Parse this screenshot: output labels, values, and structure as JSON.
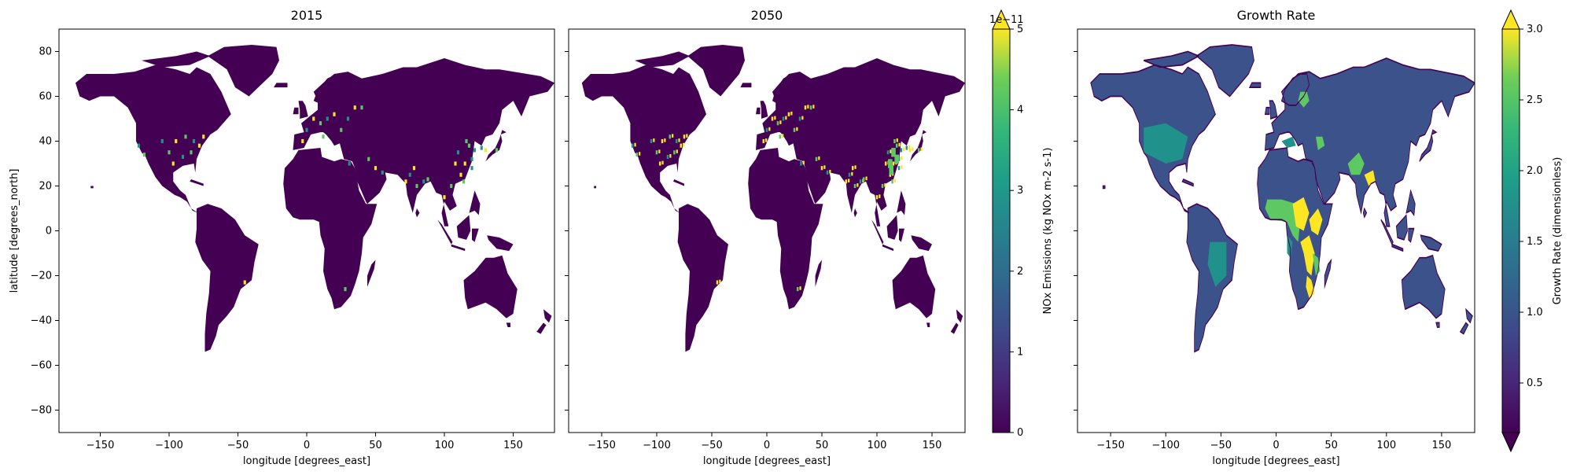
{
  "chart_data": [
    {
      "type": "heatmap",
      "title": "2015",
      "xlabel": "longitude [degrees_east]",
      "ylabel": "latitude [degrees_north]",
      "xlim": [
        -180,
        180
      ],
      "ylim": [
        -90,
        90
      ],
      "xticks": [
        -150,
        -100,
        -50,
        0,
        50,
        100,
        150
      ],
      "yticks": [
        80,
        60,
        40,
        20,
        0,
        -20,
        -40,
        -60,
        -80
      ],
      "colormap": "viridis",
      "shared_colorbar": "NOx Emissions (kg NOx m-2 s-1)"
    },
    {
      "type": "heatmap",
      "title": "2050",
      "xlabel": "longitude [degrees_east]",
      "ylabel": "",
      "xlim": [
        -180,
        180
      ],
      "ylim": [
        -90,
        90
      ],
      "xticks": [
        -150,
        -100,
        -50,
        0,
        50,
        100,
        150
      ],
      "yticks": [
        80,
        60,
        40,
        20,
        0,
        -20,
        -40,
        -60,
        -80
      ],
      "colormap": "viridis",
      "colorbar": {
        "label": "NOx Emissions (kg NOx m-2 s-1)",
        "range": [
          0,
          5
        ],
        "ticks": [
          "0",
          "1",
          "2",
          "3",
          "4",
          "5"
        ],
        "offset_text": "1e−11",
        "extend": "max"
      }
    },
    {
      "type": "heatmap",
      "title": "Growth Rate",
      "xlabel": "longitude [degrees_east]",
      "ylabel": "",
      "xlim": [
        -180,
        180
      ],
      "ylim": [
        -90,
        90
      ],
      "xticks": [
        -150,
        -100,
        -50,
        0,
        50,
        100,
        150
      ],
      "yticks": [
        80,
        60,
        40,
        20,
        0,
        -20,
        -40,
        -60,
        -80
      ],
      "colormap": "viridis",
      "colorbar": {
        "label": "Growth Rate (dimensionless)",
        "range": [
          0.15,
          3.0
        ],
        "ticks": [
          "0.5",
          "1.0",
          "1.5",
          "2.0",
          "2.5",
          "3.0"
        ],
        "tick_values": [
          0.5,
          1.0,
          1.5,
          2.0,
          2.5,
          3.0
        ],
        "extend": "both"
      }
    }
  ],
  "colors": {
    "land_low": "#440154",
    "land_mid": "#3b528b",
    "mid_green": "#21918c",
    "green": "#5ec962",
    "yellow": "#fde725",
    "background": "#ffffff"
  }
}
